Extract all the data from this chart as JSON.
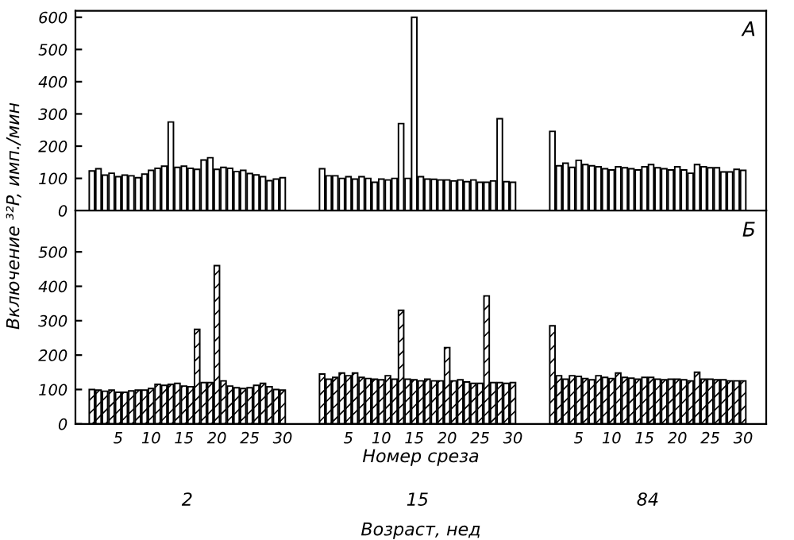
{
  "chart_data": [
    {
      "type": "bar",
      "ylabel": "Включение ³²P, имп./мин",
      "annotations": [
        "А"
      ],
      "categories": [
        null,
        null,
        null,
        null,
        null,
        null,
        "5",
        null,
        null,
        null,
        null,
        "10",
        null,
        null,
        null,
        null,
        "15",
        null,
        null,
        null,
        null,
        "20",
        null,
        null,
        null,
        null,
        "25",
        null,
        null,
        null,
        null,
        "30",
        null,
        null,
        null,
        null,
        null,
        null,
        null,
        null,
        null,
        "5",
        null,
        null,
        null,
        null,
        "10",
        null,
        null,
        null,
        null,
        "15",
        null,
        null,
        null,
        null,
        "20",
        null,
        null,
        null,
        null,
        "25",
        null,
        null,
        null,
        null,
        "30",
        null,
        null,
        null,
        null,
        null,
        null,
        null,
        null,
        null,
        "5",
        null,
        null,
        null,
        null,
        "10",
        null,
        null,
        null,
        null,
        "15",
        null,
        null,
        null,
        null,
        "20",
        null,
        null,
        null,
        null,
        "25",
        null,
        null,
        null,
        null,
        "30",
        null,
        null,
        null
      ],
      "series": [
        {
          "color": "#ffffff",
          "values": [
            null,
            null,
            123,
            130,
            110,
            116,
            105,
            110,
            108,
            102,
            113,
            125,
            131,
            138,
            275,
            134,
            138,
            131,
            128,
            157,
            164,
            128,
            134,
            131,
            121,
            125,
            115,
            111,
            105,
            93,
            98,
            102,
            null,
            null,
            null,
            null,
            null,
            130,
            108,
            108,
            100,
            105,
            98,
            105,
            100,
            88,
            98,
            95,
            100,
            270,
            100,
            600,
            105,
            98,
            97,
            95,
            95,
            92,
            95,
            90,
            95,
            88,
            88,
            92,
            285,
            90,
            88,
            null,
            null,
            null,
            null,
            null,
            246,
            139,
            147,
            134,
            156,
            143,
            139,
            136,
            130,
            126,
            136,
            133,
            130,
            126,
            136,
            143,
            133,
            130,
            126,
            136,
            126,
            116,
            143,
            136,
            133,
            133,
            120,
            120,
            128,
            125,
            null,
            null,
            null
          ]
        }
      ],
      "ylim": [
        0,
        620
      ],
      "yticks": [
        0,
        100,
        200,
        300,
        400,
        500,
        600
      ],
      "tick_labels": "y",
      "grid": false
    },
    {
      "type": "bar",
      "xlabel": "Номер среза",
      "annotations": [
        "Б",
        "2",
        "15",
        "84",
        "Возраст, нед"
      ],
      "categories": [
        null,
        null,
        null,
        null,
        null,
        null,
        "5",
        null,
        null,
        null,
        null,
        "10",
        null,
        null,
        null,
        null,
        "15",
        null,
        null,
        null,
        null,
        "20",
        null,
        null,
        null,
        null,
        "25",
        null,
        null,
        null,
        null,
        "30",
        null,
        null,
        null,
        null,
        null,
        null,
        null,
        null,
        null,
        "5",
        null,
        null,
        null,
        null,
        "10",
        null,
        null,
        null,
        null,
        "15",
        null,
        null,
        null,
        null,
        "20",
        null,
        null,
        null,
        null,
        "25",
        null,
        null,
        null,
        null,
        "30",
        null,
        null,
        null,
        null,
        null,
        null,
        null,
        null,
        null,
        "5",
        null,
        null,
        null,
        null,
        "10",
        null,
        null,
        null,
        null,
        "15",
        null,
        null,
        null,
        null,
        "20",
        null,
        null,
        null,
        null,
        "25",
        null,
        null,
        null,
        null,
        "30",
        null,
        null,
        null
      ],
      "series": [
        {
          "color": "#000000",
          "values": [
            null,
            null,
            100,
            98,
            95,
            98,
            92,
            92,
            96,
            98,
            98,
            103,
            115,
            112,
            115,
            118,
            110,
            108,
            275,
            120,
            120,
            460,
            125,
            110,
            105,
            103,
            105,
            112,
            118,
            108,
            100,
            98,
            null,
            null,
            null,
            null,
            null,
            145,
            130,
            135,
            148,
            140,
            148,
            135,
            132,
            130,
            128,
            140,
            130,
            330,
            130,
            128,
            125,
            130,
            125,
            125,
            222,
            125,
            128,
            122,
            118,
            118,
            372,
            120,
            120,
            118,
            120,
            null,
            null,
            null,
            null,
            null,
            285,
            140,
            130,
            140,
            138,
            132,
            128,
            140,
            135,
            132,
            148,
            135,
            133,
            130,
            135,
            135,
            130,
            128,
            130,
            130,
            128,
            125,
            150,
            130,
            130,
            128,
            128,
            125,
            125,
            125,
            null,
            null,
            null
          ]
        }
      ],
      "ylim": [
        0,
        620
      ],
      "yticks": [
        0,
        100,
        200,
        300,
        400,
        500
      ],
      "grid": false
    }
  ]
}
